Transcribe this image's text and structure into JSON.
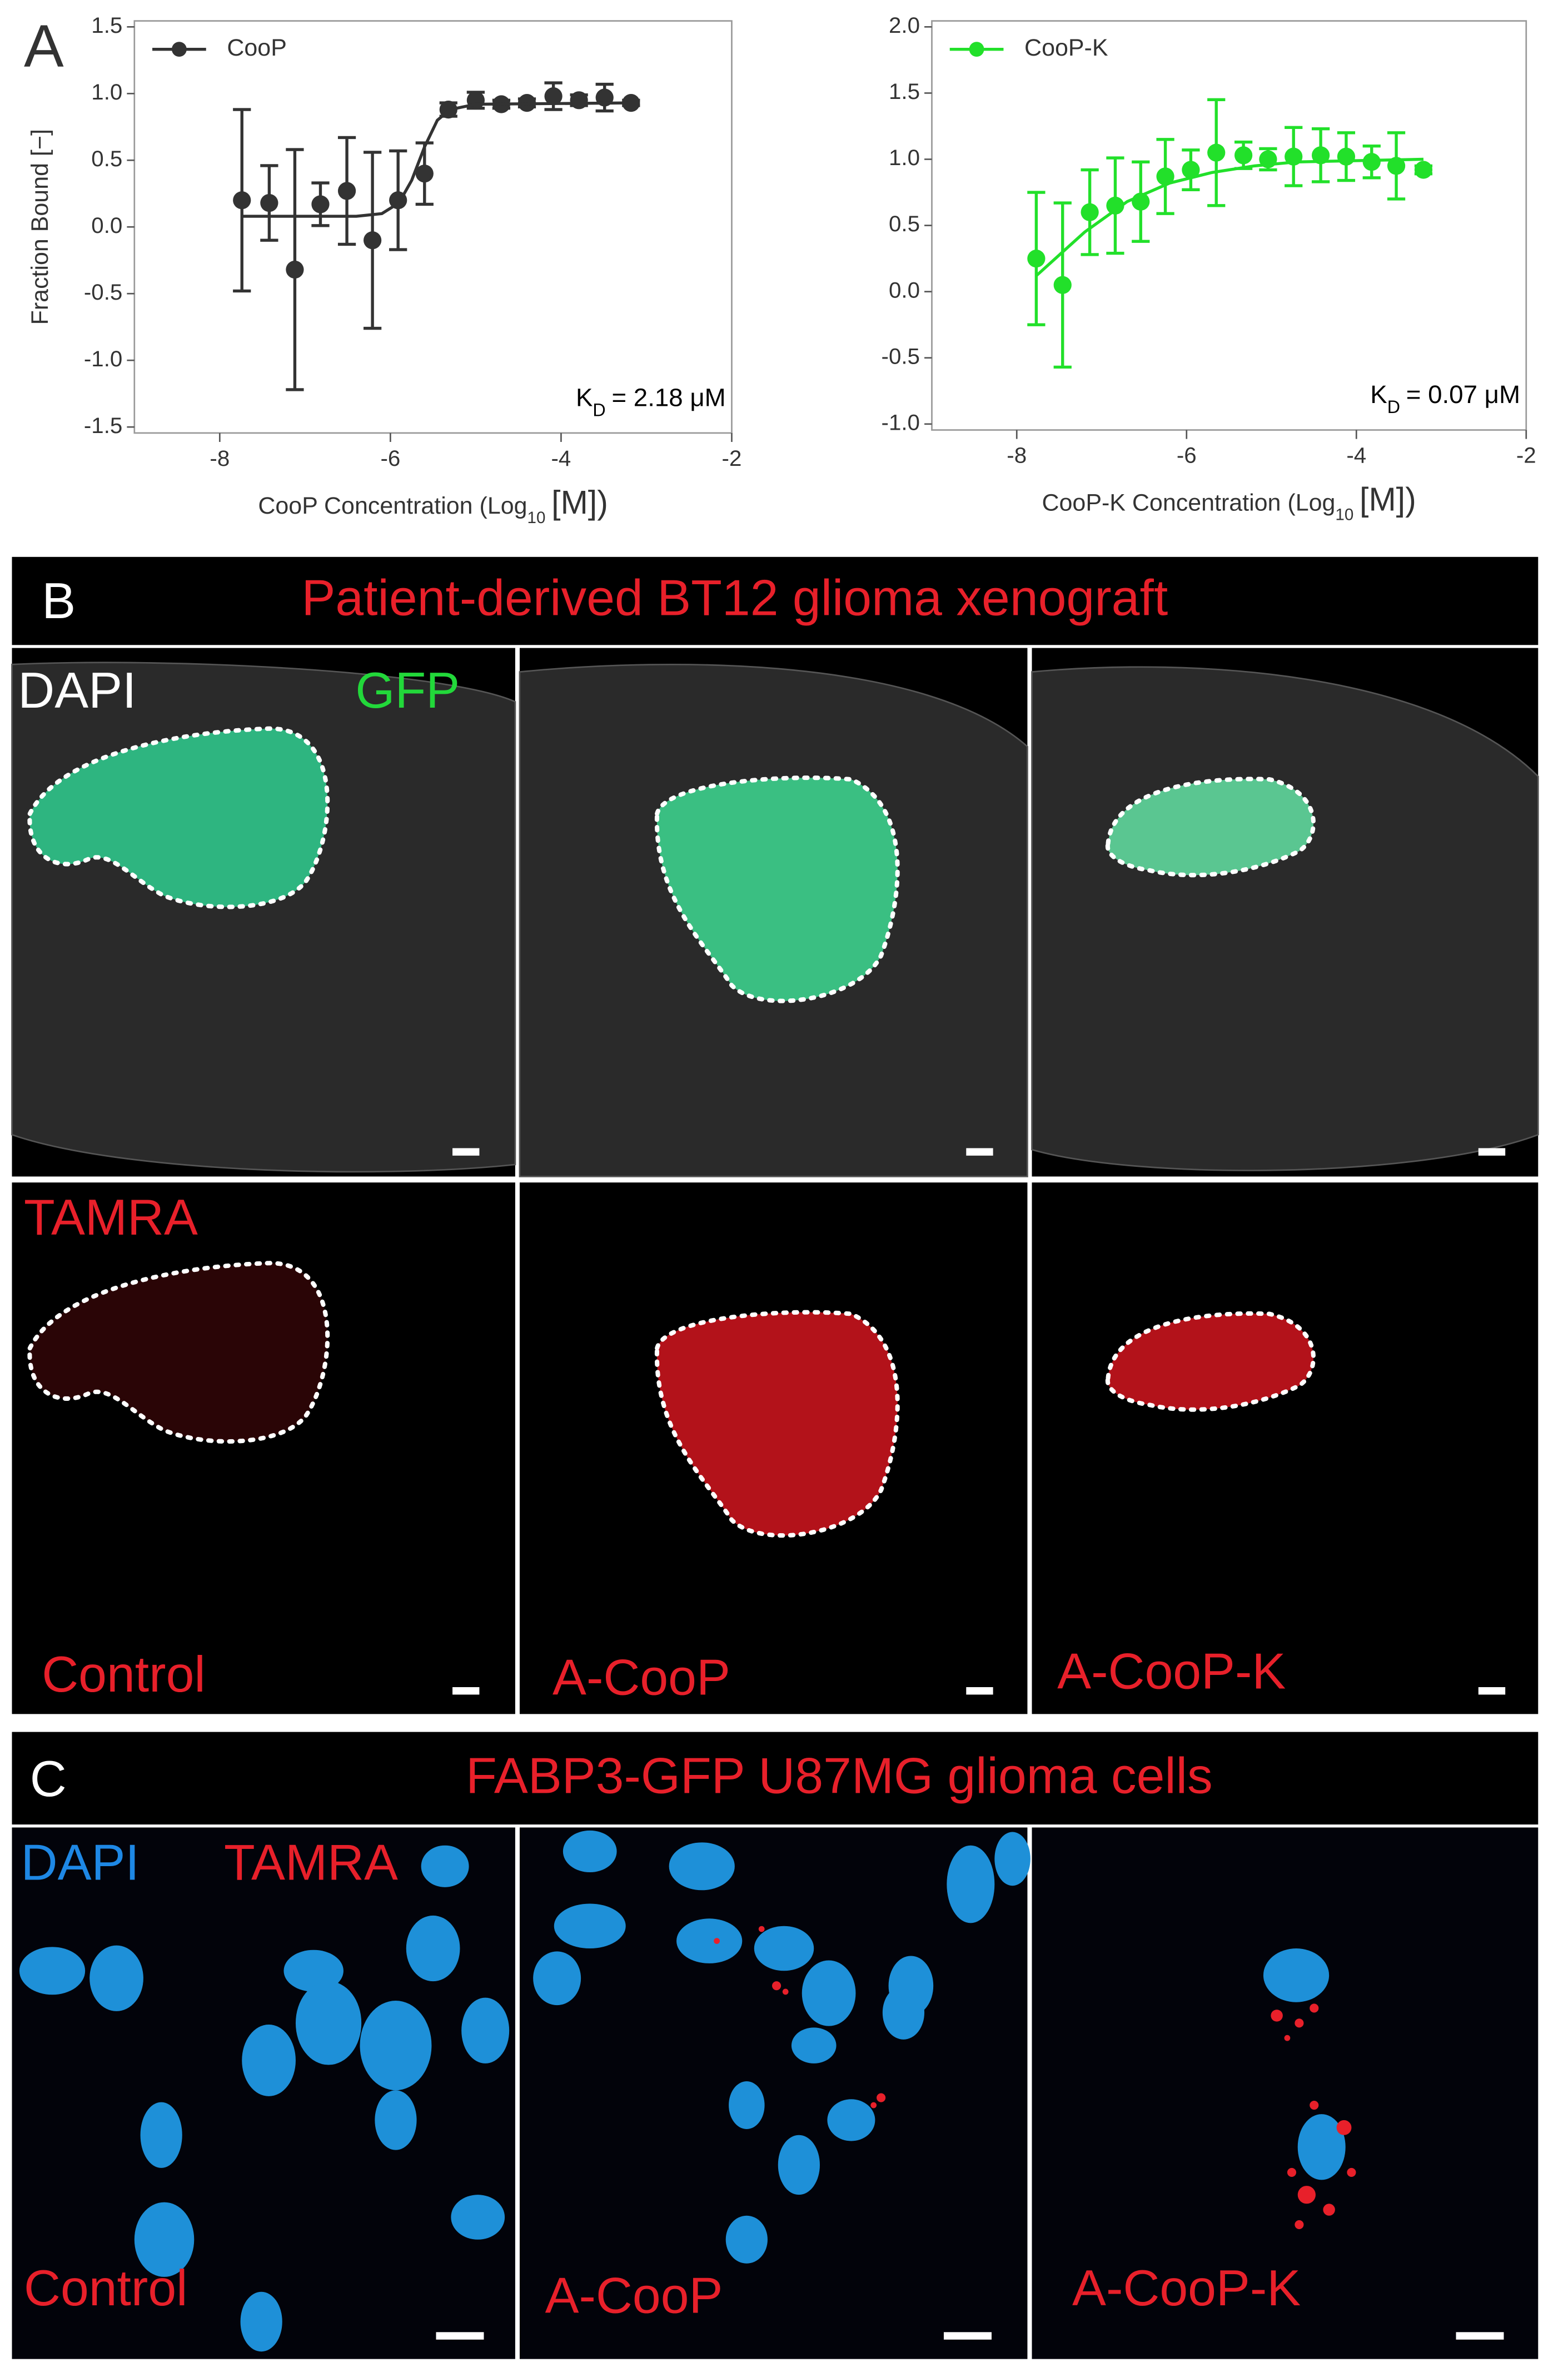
{
  "chart_data": [
    {
      "type": "scatter",
      "ylabel": "Fraction Bound [−]",
      "xlabel": {
        "text": "CooP Concentration (Log",
        "subscript": "10",
        "unit": "[M])"
      },
      "annotation": {
        "symbol": "K",
        "subscript": "D",
        "text": "= 2.18 μM"
      },
      "xlim": [
        -9,
        -2
      ],
      "xticks": [
        -8,
        -6,
        -4,
        -2
      ],
      "ylim": [
        -1.5,
        1.5
      ],
      "yticks": [
        -1.5,
        {
          "value": -1,
          "label": "-1.0"
        },
        -0.5,
        {
          "value": 0,
          "label": "0.0"
        },
        0.5,
        {
          "value": 1,
          "label": "1.0"
        },
        1.5
      ],
      "series": [
        {
          "name": "CooP",
          "color": "#333333",
          "x": [
            -7.74,
            -7.42,
            -7.12,
            -6.82,
            -6.51,
            -6.21,
            -5.91,
            -5.6,
            -5.32,
            -5.0,
            -4.7,
            -4.4,
            -4.09,
            -3.79,
            -3.49,
            -3.18
          ],
          "values": [
            0.2,
            0.18,
            -0.32,
            0.17,
            0.27,
            -0.1,
            0.2,
            0.4,
            0.88,
            0.95,
            0.92,
            0.93,
            0.98,
            0.95,
            0.97,
            0.93
          ],
          "errors": [
            0.68,
            0.28,
            0.9,
            0.16,
            0.4,
            0.66,
            0.37,
            0.23,
            0.05,
            0.06,
            0.03,
            0.03,
            0.1,
            0.04,
            0.1,
            0.02
          ]
        }
      ],
      "fit": {
        "x": [
          -7.74,
          -6.4,
          -6.1,
          -5.9,
          -5.75,
          -5.6,
          -5.45,
          -5.3,
          -5.0,
          -3.18
        ],
        "values": [
          0.08,
          0.08,
          0.1,
          0.18,
          0.35,
          0.6,
          0.8,
          0.88,
          0.92,
          0.93
        ]
      }
    },
    {
      "type": "scatter",
      "xlabel": {
        "text": "CooP-K Concentration (Log",
        "subscript": "10",
        "unit": "[M])"
      },
      "annotation": {
        "symbol": "K",
        "subscript": "D",
        "text": "= 0.07 μM"
      },
      "xlim": [
        -9,
        -2
      ],
      "xticks": [
        -8,
        -6,
        -4,
        -2
      ],
      "ylim": [
        -1,
        2
      ],
      "yticks": [
        {
          "value": -1,
          "label": "-1.0"
        },
        -0.5,
        {
          "value": 0,
          "label": "0.0"
        },
        0.5,
        {
          "value": 1,
          "label": "1.0"
        },
        1.5,
        {
          "value": 2,
          "label": "2.0"
        }
      ],
      "series": [
        {
          "name": "CooP-K",
          "color": "#22e02a",
          "x": [
            -7.77,
            -7.46,
            -7.14,
            -6.84,
            -6.54,
            -6.25,
            -5.95,
            -5.65,
            -5.33,
            -5.04,
            -4.74,
            -4.42,
            -4.12,
            -3.82,
            -3.53,
            -3.21
          ],
          "values": [
            0.25,
            0.05,
            0.6,
            0.65,
            0.68,
            0.87,
            0.92,
            1.05,
            1.03,
            1.0,
            1.02,
            1.03,
            1.02,
            0.98,
            0.95,
            0.92
          ],
          "errors": [
            0.5,
            0.62,
            0.32,
            0.36,
            0.3,
            0.28,
            0.15,
            0.4,
            0.1,
            0.08,
            0.22,
            0.2,
            0.18,
            0.12,
            0.25,
            0.03
          ]
        }
      ],
      "fit": {
        "x": [
          -7.77,
          -7.2,
          -6.7,
          -6.2,
          -5.7,
          -5.2,
          -4.7,
          -3.21
        ],
        "values": [
          0.12,
          0.45,
          0.68,
          0.82,
          0.9,
          0.95,
          0.98,
          1.0
        ]
      }
    }
  ],
  "panel_labels": [
    "A",
    "B",
    "C"
  ],
  "panel_b": {
    "title": "Patient-derived BT12 glioma xenograft",
    "stains_top": [
      "DAPI",
      "GFP"
    ],
    "stain_bottom": "TAMRA",
    "conditions": [
      "Control",
      "A-CooP",
      "A-CooP-K"
    ]
  },
  "panel_c": {
    "title": "FABP3-GFP U87MG glioma cells",
    "stains": [
      "DAPI",
      "TAMRA"
    ],
    "conditions": [
      "Control",
      "A-CooP",
      "A-CooP-K"
    ]
  }
}
